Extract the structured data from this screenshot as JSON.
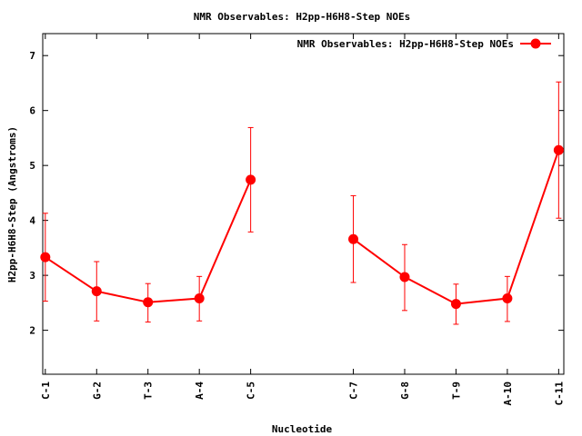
{
  "chart_data": {
    "type": "line",
    "title": "NMR Observables: H2pp-H6H8-Step NOEs",
    "xlabel": "Nucleotide",
    "ylabel": "H2pp-H6H8-Step (Angstroms)",
    "ylim": [
      1.2,
      7.4
    ],
    "yticks": [
      2,
      3,
      4,
      5,
      6,
      7
    ],
    "xlim": [
      0.95,
      11.1
    ],
    "grid": false,
    "legend": "top-right",
    "series_color": "#ff0000",
    "series": [
      {
        "name": "NMR Observables: H2pp-H6H8-Step NOEs",
        "segments": [
          [
            {
              "x": 1,
              "label": "C-1",
              "y": 3.33,
              "err_low": 2.53,
              "err_high": 4.13
            },
            {
              "x": 2,
              "label": "G-2",
              "y": 2.71,
              "err_low": 2.17,
              "err_high": 3.25
            },
            {
              "x": 3,
              "label": "T-3",
              "y": 2.51,
              "err_low": 2.15,
              "err_high": 2.85
            },
            {
              "x": 4,
              "label": "A-4",
              "y": 2.58,
              "err_low": 2.17,
              "err_high": 2.98
            },
            {
              "x": 5,
              "label": "C-5",
              "y": 4.74,
              "err_low": 3.79,
              "err_high": 5.69
            }
          ],
          [
            {
              "x": 7,
              "label": "C-7",
              "y": 3.66,
              "err_low": 2.87,
              "err_high": 4.45
            },
            {
              "x": 8,
              "label": "G-8",
              "y": 2.97,
              "err_low": 2.36,
              "err_high": 3.56
            },
            {
              "x": 9,
              "label": "T-9",
              "y": 2.48,
              "err_low": 2.11,
              "err_high": 2.84
            },
            {
              "x": 10,
              "label": "A-10",
              "y": 2.58,
              "err_low": 2.16,
              "err_high": 2.98
            },
            {
              "x": 11,
              "label": "C-11",
              "y": 5.28,
              "err_low": 4.04,
              "err_high": 6.52
            }
          ]
        ]
      }
    ]
  }
}
